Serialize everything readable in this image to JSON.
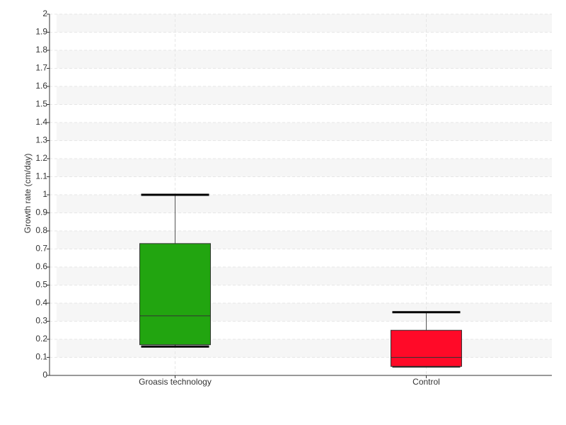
{
  "chart_data": {
    "type": "box",
    "y_label": "Growth rate (cm/day)",
    "categories": [
      "Groasis technology",
      "Control"
    ],
    "boxes": [
      {
        "color": "#22a510",
        "min": 0.16,
        "q1": 0.17,
        "median": 0.33,
        "q3": 0.73,
        "max": 1.0
      },
      {
        "color": "#ff0a28",
        "min": 0.05,
        "q1": 0.05,
        "median": 0.1,
        "q3": 0.25,
        "max": 0.35
      }
    ],
    "ylim": [
      0,
      2
    ],
    "yticks": [
      0,
      0.1,
      0.2,
      0.3,
      0.4,
      0.5,
      0.6,
      0.7,
      0.8,
      0.9,
      1,
      1.1,
      1.2,
      1.3,
      1.4,
      1.5,
      1.6,
      1.7,
      1.8,
      1.9,
      2
    ],
    "grid": true
  }
}
